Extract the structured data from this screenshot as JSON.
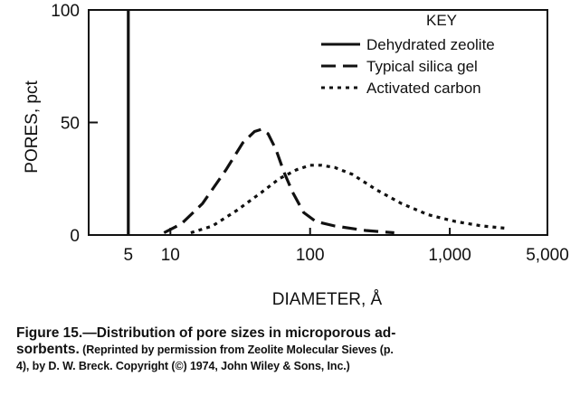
{
  "chart_data": {
    "type": "line",
    "xlabel": "DIAMETER, Å",
    "ylabel": "PORES, pct",
    "x_scale": "log",
    "xlim": [
      2.6,
      5000
    ],
    "ylim": [
      0,
      100
    ],
    "x_ticks": [
      5,
      10,
      100,
      1000,
      5000
    ],
    "x_tick_labels": [
      "5",
      "10",
      "100",
      "1,000",
      "5,000"
    ],
    "y_ticks": [
      0,
      50,
      100
    ],
    "y_tick_labels": [
      "0",
      "50",
      "100"
    ],
    "legend": {
      "title": "KEY",
      "position": "top-right"
    },
    "series": [
      {
        "name": "Dehydrated zeolite",
        "style": "solid",
        "points": [
          [
            5,
            0
          ],
          [
            5,
            100
          ]
        ]
      },
      {
        "name": "Typical silica gel",
        "style": "dashed",
        "points": [
          [
            9,
            1
          ],
          [
            12,
            5
          ],
          [
            17,
            14
          ],
          [
            25,
            29
          ],
          [
            33,
            41
          ],
          [
            40,
            46
          ],
          [
            45,
            47
          ],
          [
            50,
            45
          ],
          [
            57,
            38
          ],
          [
            65,
            28
          ],
          [
            75,
            19
          ],
          [
            90,
            10
          ],
          [
            110,
            6
          ],
          [
            150,
            4
          ],
          [
            250,
            2
          ],
          [
            400,
            1
          ]
        ]
      },
      {
        "name": "Activated carbon",
        "style": "dotted",
        "points": [
          [
            14,
            1
          ],
          [
            20,
            4
          ],
          [
            30,
            11
          ],
          [
            45,
            19
          ],
          [
            60,
            25
          ],
          [
            80,
            29
          ],
          [
            100,
            31
          ],
          [
            120,
            31
          ],
          [
            150,
            30
          ],
          [
            200,
            27
          ],
          [
            300,
            20
          ],
          [
            450,
            14
          ],
          [
            700,
            9
          ],
          [
            1100,
            6
          ],
          [
            1700,
            4
          ],
          [
            2500,
            3
          ]
        ]
      }
    ]
  },
  "caption": {
    "title_line1": "Figure 15.—Distribution of pore sizes in microporous ad-",
    "title_line2_bold": "sorbents.",
    "credit_line2": " (Reprinted by permission from Zeolite Molecular Sieves (p.",
    "credit_line3": "4), by D. W. Breck. Copyright (©) 1974, John Wiley & Sons, Inc.)"
  }
}
